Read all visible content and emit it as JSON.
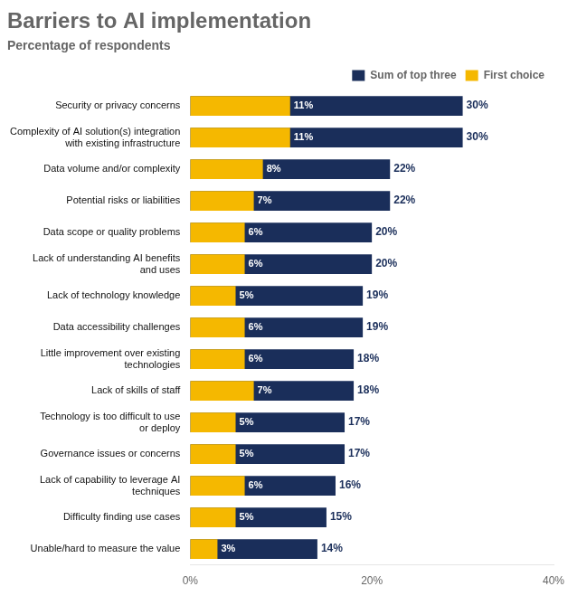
{
  "chart_data": {
    "type": "bar",
    "orientation": "horizontal",
    "title": "Barriers to AI implementation",
    "subtitle": "Percentage of respondents",
    "categories": [
      "Security or privacy concerns",
      "Complexity of AI solution(s) integration\nwith existing infrastructure",
      "Data volume and/or complexity",
      "Potential risks or liabilities",
      "Data scope or quality problems",
      "Lack of understanding AI benefits\nand uses",
      "Lack of technology knowledge",
      "Data accessibility challenges",
      "Little improvement over existing\ntechnologies",
      "Lack of skills of staff",
      "Technology is too difficult to use\nor deploy",
      "Governance issues or concerns",
      "Lack of capability to leverage AI\ntechniques",
      "Difficulty finding use cases",
      "Unable/hard to measure the value"
    ],
    "series": [
      {
        "name": "Sum of top three",
        "color": "#1a2e5a",
        "values": [
          30,
          30,
          22,
          22,
          20,
          20,
          19,
          19,
          18,
          18,
          17,
          17,
          16,
          15,
          14
        ],
        "value_labels": [
          "30%",
          "30%",
          "22%",
          "22%",
          "20%",
          "20%",
          "19%",
          "19%",
          "18%",
          "18%",
          "17%",
          "17%",
          "16%",
          "15%",
          "14%"
        ]
      },
      {
        "name": "First choice",
        "color": "#f5b800",
        "values": [
          11,
          11,
          8,
          7,
          6,
          6,
          5,
          6,
          6,
          7,
          5,
          5,
          6,
          5,
          3
        ],
        "value_labels": [
          "11%",
          "11%",
          "8%",
          "7%",
          "6%",
          "6%",
          "5%",
          "6%",
          "6%",
          "7%",
          "5%",
          "5%",
          "6%",
          "5%",
          "3%"
        ]
      }
    ],
    "xlim": [
      0,
      40
    ],
    "xticks": [
      {
        "value": 0,
        "label": "0%"
      },
      {
        "value": 20,
        "label": "20%"
      },
      {
        "value": 40,
        "label": "40%"
      }
    ],
    "stacked": false,
    "data_labels": true,
    "grid": false,
    "legend": "top"
  }
}
